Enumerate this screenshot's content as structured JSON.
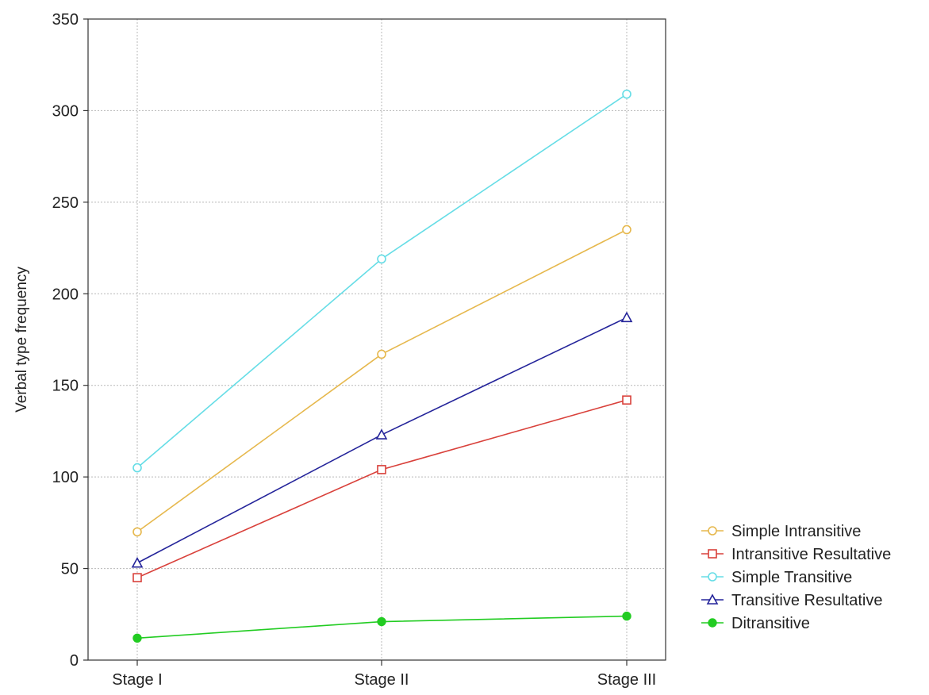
{
  "chart_data": {
    "type": "line",
    "title": "",
    "xlabel": "",
    "ylabel": "Verbal type frequency",
    "categories": [
      "Stage I",
      "Stage II",
      "Stage III"
    ],
    "ylim": [
      0,
      350
    ],
    "yticks": [
      0,
      50,
      100,
      150,
      200,
      250,
      300,
      350
    ],
    "grid": true,
    "legend_position": "bottom-right",
    "series": [
      {
        "name": "Simple Intransitive",
        "values": [
          70,
          167,
          235
        ],
        "color": "#e6b84d",
        "marker": "circle-open"
      },
      {
        "name": "Intransitive Resultative",
        "values": [
          45,
          104,
          142
        ],
        "color": "#d9413b",
        "marker": "square-open"
      },
      {
        "name": "Simple Transitive",
        "values": [
          105,
          219,
          309
        ],
        "color": "#66dde6",
        "marker": "circle-open"
      },
      {
        "name": "Transitive Resultative",
        "values": [
          53,
          123,
          187
        ],
        "color": "#24249a",
        "marker": "triangle-open"
      },
      {
        "name": "Ditransitive",
        "values": [
          12,
          21,
          24
        ],
        "color": "#22cc22",
        "marker": "circle-filled"
      }
    ]
  }
}
